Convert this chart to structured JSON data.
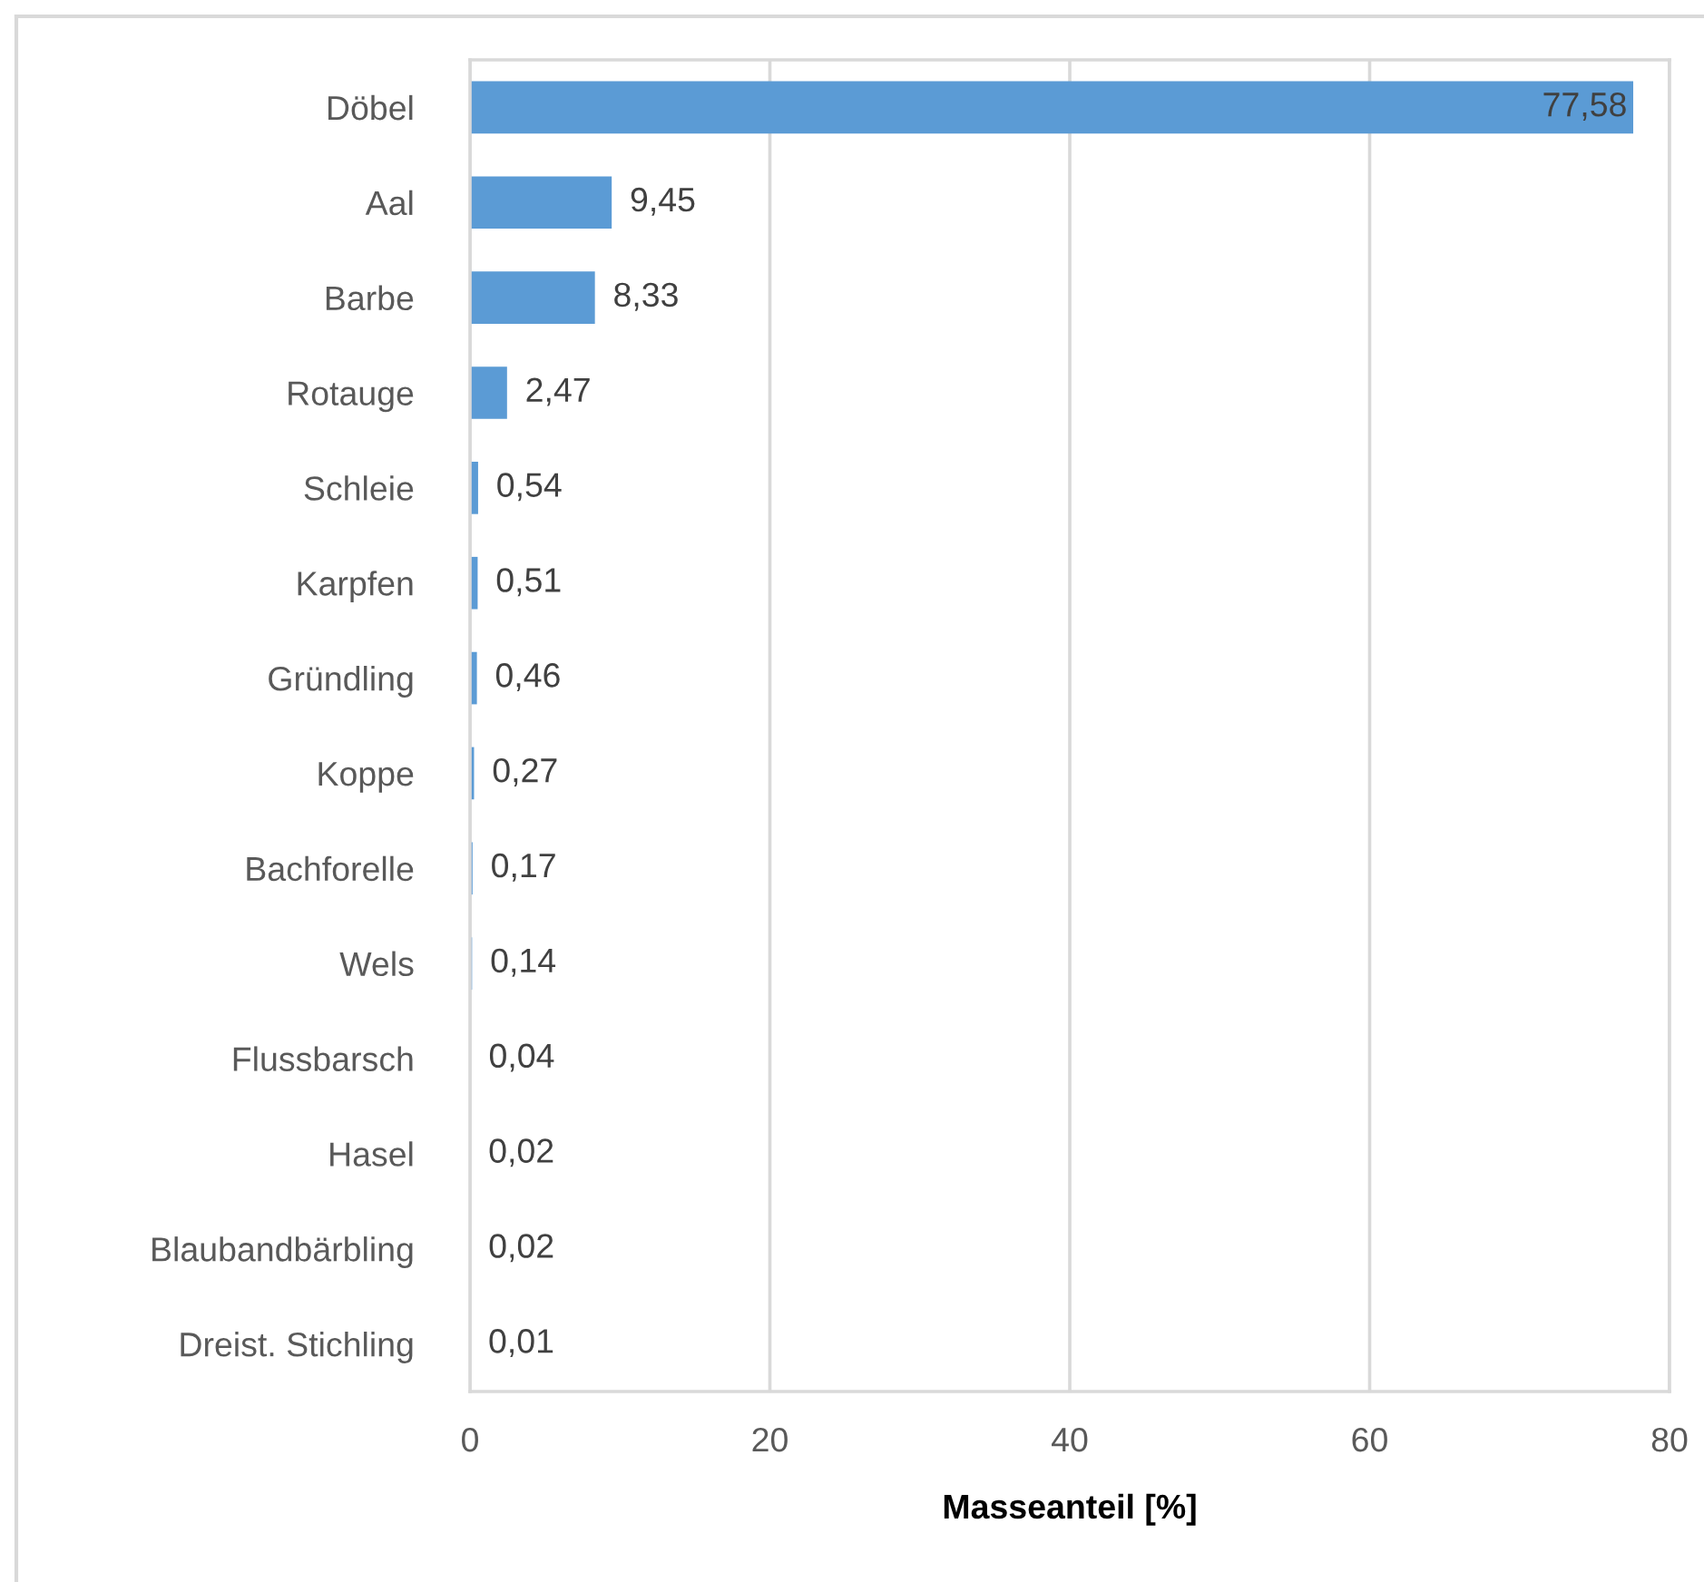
{
  "chart_data": {
    "type": "bar",
    "orientation": "horizontal",
    "categories": [
      "Döbel",
      "Aal",
      "Barbe",
      "Rotauge",
      "Schleie",
      "Karpfen",
      "Gründling",
      "Koppe",
      "Bachforelle",
      "Wels",
      "Flussbarsch",
      "Hasel",
      "Blaubandbärbling",
      "Dreist. Stichling"
    ],
    "values": [
      77.58,
      9.45,
      8.33,
      2.47,
      0.54,
      0.51,
      0.46,
      0.27,
      0.17,
      0.14,
      0.04,
      0.02,
      0.02,
      0.01
    ],
    "value_labels": [
      "77,58",
      "9,45",
      "8,33",
      "2,47",
      "0,54",
      "0,51",
      "0,46",
      "0,27",
      "0,17",
      "0,14",
      "0,04",
      "0,02",
      "0,02",
      "0,01"
    ],
    "color": "#5b9bd5",
    "xlabel": "Masseanteil [%]",
    "xlim": [
      0,
      80
    ],
    "xticks": [
      0,
      20,
      40,
      60,
      80
    ],
    "grid": "x"
  }
}
